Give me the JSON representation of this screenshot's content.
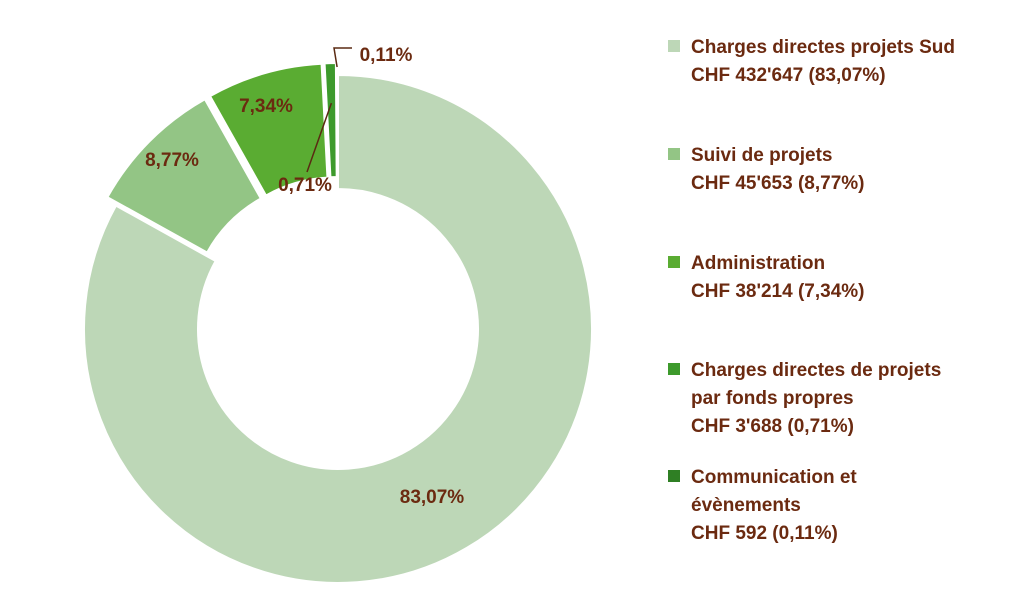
{
  "chart_data": {
    "type": "pie",
    "variant": "donut",
    "slices": [
      {
        "label": "83,07%",
        "value": 83.07,
        "color": "#bdd7b7",
        "exploded": false
      },
      {
        "label": "8,77%",
        "value": 8.77,
        "color": "#93c585",
        "exploded": true
      },
      {
        "label": "7,34%",
        "value": 7.34,
        "color": "#5aac32",
        "exploded": true
      },
      {
        "label": "0,71%",
        "value": 0.71,
        "color": "#3d9a2c",
        "exploded": true
      },
      {
        "label": "0,11%",
        "value": 0.11,
        "color": "#2f7f24",
        "exploded": true
      }
    ],
    "legend_position": "right",
    "legend": [
      {
        "lines": [
          "Charges directes projets Sud",
          "CHF 432'647 (83,07%)"
        ]
      },
      {
        "lines": [
          "Suivi de projets",
          "CHF 45'653 (8,77%)"
        ]
      },
      {
        "lines": [
          "Administration",
          "CHF 38'214 (7,34%)"
        ]
      },
      {
        "lines": [
          "Charges directes de projets",
          "par fonds propres",
          "CHF 3'688 (0,71%)"
        ]
      },
      {
        "lines": [
          "Communication et",
          "évènements",
          "CHF 592 (0,11%)"
        ]
      }
    ]
  }
}
